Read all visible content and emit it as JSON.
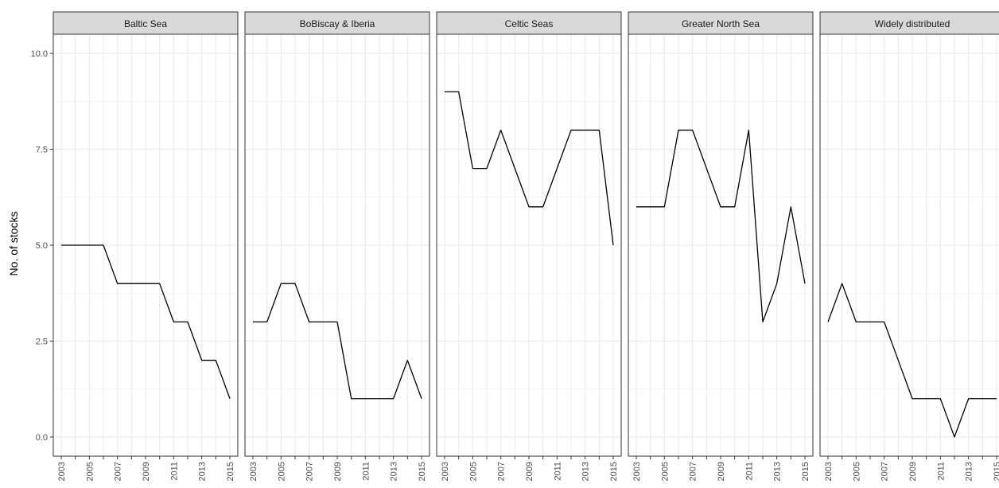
{
  "chart_data": {
    "type": "line",
    "ylabel": "No. of stocks",
    "xlabel": "",
    "ylim": [
      -0.5,
      10.5
    ],
    "y_ticks": [
      0.0,
      2.5,
      5.0,
      7.5,
      10.0
    ],
    "y_tick_labels": [
      "0.0",
      "2.5",
      "5.0",
      "7.5",
      "10.0"
    ],
    "x": [
      2003,
      2004,
      2005,
      2006,
      2007,
      2008,
      2009,
      2010,
      2011,
      2012,
      2013,
      2014,
      2015
    ],
    "x_tick_labels": [
      "2003",
      "2005",
      "2007",
      "2009",
      "2011",
      "2013",
      "2015"
    ],
    "grid": true,
    "line_color": "#000000",
    "strip_color": "#d9d9d9",
    "panels": [
      {
        "name": "Baltic Sea",
        "values": [
          5,
          5,
          5,
          5,
          4,
          4,
          4,
          4,
          3,
          3,
          2,
          2,
          1
        ]
      },
      {
        "name": "BoBiscay & Iberia",
        "values": [
          3,
          3,
          4,
          4,
          3,
          3,
          3,
          1,
          1,
          1,
          1,
          2,
          1
        ]
      },
      {
        "name": "Celtic Seas",
        "values": [
          9,
          9,
          7,
          7,
          8,
          7,
          6,
          6,
          7,
          8,
          8,
          8,
          5
        ]
      },
      {
        "name": "Greater North Sea",
        "values": [
          6,
          6,
          6,
          8,
          8,
          7,
          6,
          6,
          8,
          3,
          4,
          6,
          4
        ]
      },
      {
        "name": "Widely distributed",
        "values": [
          3,
          4,
          3,
          3,
          3,
          2,
          1,
          1,
          1,
          0,
          1,
          1,
          1
        ]
      }
    ]
  }
}
